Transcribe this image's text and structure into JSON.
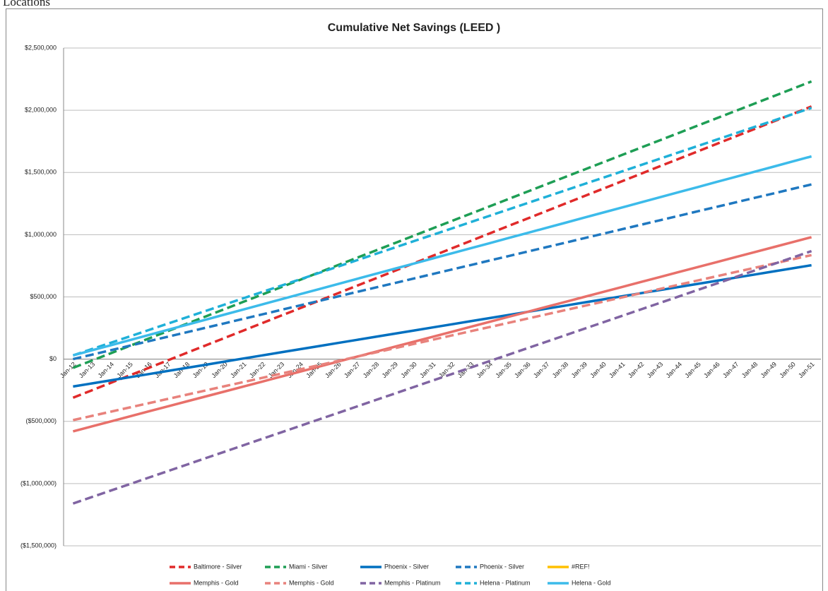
{
  "heading": "Locations",
  "chart_data": {
    "type": "line",
    "title": "Cumulative Net Savings (LEED )",
    "categories": [
      "Jan-12",
      "Jan-13",
      "Jan-14",
      "Jan-15",
      "Jan-16",
      "Jan-17",
      "Jan-18",
      "Jan-19",
      "Jan-20",
      "Jan-21",
      "Jan-22",
      "Jan-23",
      "Jan-24",
      "Jan-25",
      "Jan-26",
      "Jan-27",
      "Jan-28",
      "Jan-29",
      "Jan-30",
      "Jan-31",
      "Jan-32",
      "Jan-33",
      "Jan-34",
      "Jan-35",
      "Jan-36",
      "Jan-37",
      "Jan-38",
      "Jan-39",
      "Jan-40",
      "Jan-41",
      "Jan-42",
      "Jan-43",
      "Jan-44",
      "Jan-45",
      "Jan-46",
      "Jan-47",
      "Jan-48",
      "Jan-49",
      "Jan-50",
      "Jan-51"
    ],
    "ylim": [
      -1500000,
      2500000
    ],
    "yticks": [
      {
        "value": 2500000,
        "label": "$2,500,000"
      },
      {
        "value": 2000000,
        "label": "$2,000,000"
      },
      {
        "value": 1500000,
        "label": "$1,500,000"
      },
      {
        "value": 1000000,
        "label": "$1,000,000"
      },
      {
        "value": 500000,
        "label": "$500,000"
      },
      {
        "value": 0,
        "label": "$0"
      },
      {
        "value": -500000,
        "label": "($500,000)"
      },
      {
        "value": -1000000,
        "label": "($1,000,000)"
      },
      {
        "value": -1500000,
        "label": "($1,500,000)"
      }
    ],
    "grid": true,
    "legend": "bottom",
    "negative_label_color": "#e03030",
    "series": [
      {
        "name": "Baltimore - Silver",
        "color": "#e02a2a",
        "dash": true,
        "values": [
          -310000,
          -250000,
          -190000,
          -130000,
          -70000,
          -10000,
          50000,
          110000,
          170000,
          230000,
          290000,
          350000,
          410000,
          470000,
          530000,
          590000,
          650000,
          710000,
          770000,
          830000,
          890000,
          950000,
          1010000,
          1070000,
          1130000,
          1190000,
          1250000,
          1310000,
          1370000,
          1430000,
          1490000,
          1550000,
          1610000,
          1670000,
          1730000,
          1790000,
          1850000,
          1910000,
          1970000,
          2030000
        ]
      },
      {
        "name": "Miami - Silver",
        "color": "#1e9e55",
        "dash": true,
        "values": [
          -70000,
          -11000,
          48000,
          107000,
          166000,
          225000,
          284000,
          343000,
          402000,
          461000,
          520000,
          579000,
          638000,
          697000,
          756000,
          815000,
          874000,
          933000,
          992000,
          1051000,
          1110000,
          1169000,
          1228000,
          1287000,
          1346000,
          1405000,
          1464000,
          1523000,
          1582000,
          1641000,
          1700000,
          1759000,
          1818000,
          1877000,
          1936000,
          1995000,
          2054000,
          2113000,
          2172000,
          2231000
        ]
      },
      {
        "name": "Phoenix - Silver",
        "color": "#0070c0",
        "dash": false,
        "values": [
          -220000,
          -195000,
          -170000,
          -145000,
          -120000,
          -95000,
          -70000,
          -45000,
          -20000,
          5000,
          30000,
          55000,
          80000,
          105000,
          130000,
          155000,
          180000,
          205000,
          230000,
          255000,
          280000,
          305000,
          330000,
          355000,
          380000,
          405000,
          430000,
          455000,
          480000,
          505000,
          530000,
          555000,
          580000,
          605000,
          630000,
          655000,
          680000,
          705000,
          730000,
          755000
        ]
      },
      {
        "name": "Phoenix - Silver",
        "color": "#1f78c0",
        "dash": true,
        "values": [
          0,
          36000,
          72000,
          108000,
          144000,
          180000,
          216000,
          252000,
          288000,
          324000,
          360000,
          396000,
          432000,
          468000,
          504000,
          540000,
          576000,
          612000,
          648000,
          684000,
          720000,
          756000,
          792000,
          828000,
          864000,
          900000,
          936000,
          972000,
          1008000,
          1044000,
          1080000,
          1116000,
          1152000,
          1188000,
          1224000,
          1260000,
          1296000,
          1332000,
          1368000,
          1404000
        ]
      },
      {
        "name": "#REF!",
        "color": "#ffc000",
        "dash": false,
        "values": [
          null,
          null,
          null,
          null,
          null,
          null,
          null,
          null,
          null,
          null,
          null,
          null,
          null,
          null,
          null,
          null,
          null,
          null,
          null,
          null,
          null,
          null,
          null,
          null,
          null,
          null,
          null,
          null,
          null,
          null,
          null,
          null,
          null,
          null,
          null,
          null,
          null,
          null,
          null,
          null
        ]
      },
      {
        "name": "Memphis - Gold",
        "color": "#e8706a",
        "dash": false,
        "values": [
          -580000,
          -540000,
          -500000,
          -460000,
          -420000,
          -380000,
          -340000,
          -300000,
          -260000,
          -220000,
          -180000,
          -140000,
          -100000,
          -60000,
          -20000,
          20000,
          60000,
          100000,
          140000,
          180000,
          220000,
          260000,
          300000,
          340000,
          380000,
          420000,
          460000,
          500000,
          540000,
          580000,
          620000,
          660000,
          700000,
          740000,
          780000,
          820000,
          860000,
          900000,
          940000,
          980000
        ]
      },
      {
        "name": "Memphis - Gold",
        "color": "#e8827c",
        "dash": true,
        "values": [
          -490000,
          -456000,
          -422000,
          -388000,
          -354000,
          -320000,
          -286000,
          -252000,
          -218000,
          -184000,
          -150000,
          -116000,
          -82000,
          -48000,
          -14000,
          20000,
          54000,
          88000,
          122000,
          156000,
          190000,
          224000,
          258000,
          292000,
          326000,
          360000,
          394000,
          428000,
          462000,
          496000,
          530000,
          564000,
          598000,
          632000,
          666000,
          700000,
          734000,
          768000,
          802000,
          836000
        ]
      },
      {
        "name": "Memphis - Platinum",
        "color": "#8064a2",
        "dash": true,
        "values": [
          -1160000,
          -1108000,
          -1056000,
          -1004000,
          -952000,
          -900000,
          -848000,
          -796000,
          -744000,
          -692000,
          -640000,
          -588000,
          -536000,
          -484000,
          -432000,
          -380000,
          -328000,
          -276000,
          -224000,
          -172000,
          -120000,
          -68000,
          -16000,
          36000,
          88000,
          140000,
          192000,
          244000,
          296000,
          348000,
          400000,
          452000,
          504000,
          556000,
          608000,
          660000,
          712000,
          764000,
          816000,
          868000
        ]
      },
      {
        "name": "Helena - Platinum",
        "color": "#1fb0d8",
        "dash": true,
        "values": [
          30000,
          81000,
          132000,
          183000,
          234000,
          285000,
          336000,
          387000,
          438000,
          489000,
          540000,
          591000,
          642000,
          693000,
          744000,
          795000,
          846000,
          897000,
          948000,
          999000,
          1050000,
          1101000,
          1152000,
          1203000,
          1254000,
          1305000,
          1356000,
          1407000,
          1458000,
          1509000,
          1560000,
          1611000,
          1662000,
          1713000,
          1764000,
          1815000,
          1866000,
          1917000,
          1968000,
          2019000
        ]
      },
      {
        "name": "Helena - Gold",
        "color": "#3cbbea",
        "dash": false,
        "values": [
          30000,
          71000,
          112000,
          153000,
          194000,
          235000,
          276000,
          317000,
          358000,
          399000,
          440000,
          481000,
          522000,
          563000,
          604000,
          645000,
          686000,
          727000,
          768000,
          809000,
          850000,
          891000,
          932000,
          973000,
          1014000,
          1055000,
          1096000,
          1137000,
          1178000,
          1219000,
          1260000,
          1301000,
          1342000,
          1383000,
          1424000,
          1465000,
          1506000,
          1547000,
          1588000,
          1629000
        ]
      }
    ]
  }
}
